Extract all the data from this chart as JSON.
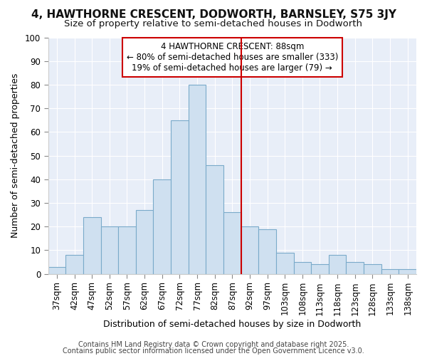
{
  "title1": "4, HAWTHORNE CRESCENT, DODWORTH, BARNSLEY, S75 3JY",
  "title2": "Size of property relative to semi-detached houses in Dodworth",
  "xlabel": "Distribution of semi-detached houses by size in Dodworth",
  "ylabel": "Number of semi-detached properties",
  "categories": [
    "37sqm",
    "42sqm",
    "47sqm",
    "52sqm",
    "57sqm",
    "62sqm",
    "67sqm",
    "72sqm",
    "77sqm",
    "82sqm",
    "87sqm",
    "92sqm",
    "97sqm",
    "103sqm",
    "108sqm",
    "113sqm",
    "118sqm",
    "123sqm",
    "128sqm",
    "133sqm",
    "138sqm"
  ],
  "values": [
    3,
    8,
    24,
    20,
    20,
    27,
    40,
    65,
    80,
    46,
    26,
    20,
    19,
    9,
    5,
    4,
    8,
    5,
    4,
    2,
    2
  ],
  "bar_color": "#cfe0f0",
  "bar_edge_color": "#7aaaca",
  "bar_width": 1.0,
  "vline_x": 10.5,
  "vline_color": "#cc0000",
  "ylim": [
    0,
    100
  ],
  "yticks": [
    0,
    10,
    20,
    30,
    40,
    50,
    60,
    70,
    80,
    90,
    100
  ],
  "plot_bg_color": "#e8eef8",
  "fig_bg_color": "#ffffff",
  "grid_color": "#ffffff",
  "annotation_title": "4 HAWTHORNE CRESCENT: 88sqm",
  "annotation_line1": "← 80% of semi-detached houses are smaller (333)",
  "annotation_line2": "19% of semi-detached houses are larger (79) →",
  "annotation_box_color": "#ffffff",
  "annotation_box_edge": "#cc0000",
  "footer1": "Contains HM Land Registry data © Crown copyright and database right 2025.",
  "footer2": "Contains public sector information licensed under the Open Government Licence v3.0.",
  "title1_fontsize": 11,
  "title2_fontsize": 9.5,
  "xlabel_fontsize": 9,
  "ylabel_fontsize": 9,
  "tick_fontsize": 8.5,
  "annotation_fontsize": 8.5,
  "footer_fontsize": 7
}
